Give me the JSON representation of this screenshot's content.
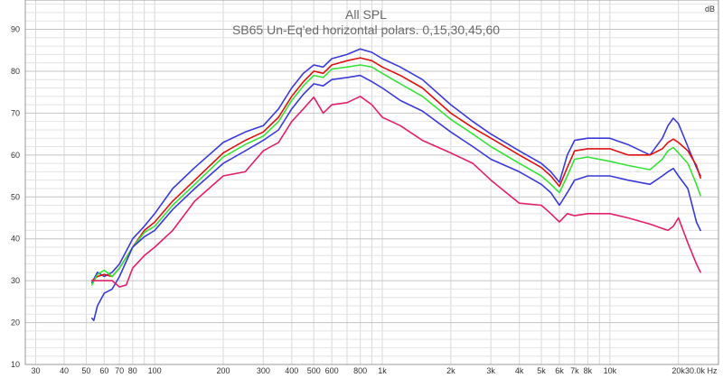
{
  "chart_data": {
    "type": "line",
    "title": "All SPL",
    "subtitle": "SB65 Un-Eq'ed horizontal polars. 0,15,30,45,60",
    "y_unit": "dB",
    "x_unit": "30.0k Hz",
    "x_scale": "log",
    "xlim": [
      27,
      30000
    ],
    "ylim": [
      10,
      97
    ],
    "grid": true,
    "x_ticks": [
      {
        "v": 30,
        "label": "30"
      },
      {
        "v": 40,
        "label": "40"
      },
      {
        "v": 50,
        "label": "50"
      },
      {
        "v": 60,
        "label": "60"
      },
      {
        "v": 70,
        "label": "70"
      },
      {
        "v": 80,
        "label": "80"
      },
      {
        "v": 100,
        "label": "100"
      },
      {
        "v": 200,
        "label": "200"
      },
      {
        "v": 300,
        "label": "300"
      },
      {
        "v": 400,
        "label": "400"
      },
      {
        "v": 500,
        "label": "500"
      },
      {
        "v": 600,
        "label": "600"
      },
      {
        "v": 800,
        "label": "800"
      },
      {
        "v": 1000,
        "label": "1k"
      },
      {
        "v": 2000,
        "label": "2k"
      },
      {
        "v": 3000,
        "label": "3k"
      },
      {
        "v": 4000,
        "label": "4k"
      },
      {
        "v": 5000,
        "label": "5k"
      },
      {
        "v": 6000,
        "label": "6k"
      },
      {
        "v": 7000,
        "label": "7k"
      },
      {
        "v": 8000,
        "label": "8k"
      },
      {
        "v": 10000,
        "label": "10k"
      },
      {
        "v": 20000,
        "label": "20k"
      }
    ],
    "y_ticks": [
      {
        "v": 10,
        "label": "10"
      },
      {
        "v": 20,
        "label": "20"
      },
      {
        "v": 30,
        "label": "30"
      },
      {
        "v": 40,
        "label": "40"
      },
      {
        "v": 50,
        "label": "50"
      },
      {
        "v": 60,
        "label": "60"
      },
      {
        "v": 70,
        "label": "70"
      },
      {
        "v": 80,
        "label": "80"
      },
      {
        "v": 90,
        "label": "90"
      }
    ],
    "series": [
      {
        "color": "#3a3ad6",
        "values": [
          [
            53,
            29.5
          ],
          [
            56,
            32
          ],
          [
            60,
            31
          ],
          [
            65,
            32
          ],
          [
            70,
            34
          ],
          [
            80,
            40
          ],
          [
            90,
            43
          ],
          [
            100,
            46
          ],
          [
            120,
            52
          ],
          [
            150,
            57
          ],
          [
            200,
            63
          ],
          [
            250,
            65.5
          ],
          [
            300,
            67
          ],
          [
            350,
            71
          ],
          [
            400,
            76
          ],
          [
            450,
            79.5
          ],
          [
            500,
            81.5
          ],
          [
            550,
            81
          ],
          [
            600,
            83
          ],
          [
            700,
            84
          ],
          [
            800,
            85.3
          ],
          [
            900,
            84.5
          ],
          [
            1000,
            83
          ],
          [
            1200,
            81
          ],
          [
            1500,
            78
          ],
          [
            2000,
            72
          ],
          [
            2500,
            68
          ],
          [
            3000,
            65
          ],
          [
            4000,
            61
          ],
          [
            5000,
            58
          ],
          [
            5500,
            56
          ],
          [
            6000,
            53.5
          ],
          [
            6500,
            60
          ],
          [
            7000,
            63.5
          ],
          [
            8000,
            64
          ],
          [
            10000,
            64
          ],
          [
            12000,
            62.5
          ],
          [
            15000,
            60
          ],
          [
            17000,
            64
          ],
          [
            18000,
            67
          ],
          [
            19000,
            68.8
          ],
          [
            20000,
            67.5
          ],
          [
            22000,
            62
          ],
          [
            24000,
            57
          ],
          [
            25000,
            55
          ]
        ]
      },
      {
        "color": "#dd1111",
        "values": [
          [
            53,
            30
          ],
          [
            56,
            31
          ],
          [
            60,
            31.5
          ],
          [
            65,
            31
          ],
          [
            70,
            33
          ],
          [
            80,
            38
          ],
          [
            90,
            42
          ],
          [
            100,
            44
          ],
          [
            120,
            49
          ],
          [
            150,
            54
          ],
          [
            200,
            60.5
          ],
          [
            250,
            63.5
          ],
          [
            300,
            65.5
          ],
          [
            350,
            69
          ],
          [
            400,
            74
          ],
          [
            450,
            77.5
          ],
          [
            500,
            80
          ],
          [
            550,
            79.5
          ],
          [
            600,
            81.5
          ],
          [
            700,
            82.5
          ],
          [
            800,
            83.2
          ],
          [
            900,
            82.5
          ],
          [
            1000,
            81
          ],
          [
            1200,
            79
          ],
          [
            1500,
            76
          ],
          [
            2000,
            70
          ],
          [
            2500,
            66.5
          ],
          [
            3000,
            64
          ],
          [
            4000,
            60
          ],
          [
            5000,
            57
          ],
          [
            5500,
            55
          ],
          [
            6000,
            52.5
          ],
          [
            6500,
            57
          ],
          [
            7000,
            61
          ],
          [
            8000,
            61.5
          ],
          [
            10000,
            61.5
          ],
          [
            12000,
            60
          ],
          [
            15000,
            60
          ],
          [
            17000,
            61.5
          ],
          [
            18000,
            63
          ],
          [
            19000,
            63.8
          ],
          [
            20000,
            63
          ],
          [
            22000,
            61
          ],
          [
            24000,
            57.5
          ],
          [
            25000,
            54.5
          ]
        ]
      },
      {
        "color": "#38e038",
        "values": [
          [
            53,
            29
          ],
          [
            56,
            31.5
          ],
          [
            60,
            32.5
          ],
          [
            65,
            31
          ],
          [
            70,
            33
          ],
          [
            80,
            38
          ],
          [
            90,
            41.5
          ],
          [
            100,
            43
          ],
          [
            120,
            48
          ],
          [
            150,
            53
          ],
          [
            200,
            59.5
          ],
          [
            250,
            62.5
          ],
          [
            300,
            64.5
          ],
          [
            350,
            68
          ],
          [
            400,
            73
          ],
          [
            450,
            76.5
          ],
          [
            500,
            79
          ],
          [
            550,
            78.5
          ],
          [
            600,
            80.5
          ],
          [
            700,
            81
          ],
          [
            800,
            81.5
          ],
          [
            900,
            81
          ],
          [
            1000,
            79.5
          ],
          [
            1200,
            77
          ],
          [
            1500,
            74
          ],
          [
            2000,
            68.5
          ],
          [
            2500,
            65
          ],
          [
            3000,
            62
          ],
          [
            4000,
            58
          ],
          [
            5000,
            55
          ],
          [
            5500,
            53
          ],
          [
            6000,
            51
          ],
          [
            6500,
            55
          ],
          [
            7000,
            59
          ],
          [
            8000,
            59.5
          ],
          [
            10000,
            58.5
          ],
          [
            12000,
            57.5
          ],
          [
            15000,
            56.5
          ],
          [
            17000,
            59
          ],
          [
            18000,
            61
          ],
          [
            19000,
            61.8
          ],
          [
            20000,
            60.5
          ],
          [
            22000,
            58
          ],
          [
            24000,
            53
          ],
          [
            25000,
            50.3
          ]
        ]
      },
      {
        "color": "#3a3ad6",
        "values": [
          [
            53,
            21
          ],
          [
            54,
            20.5
          ],
          [
            56,
            24
          ],
          [
            60,
            27
          ],
          [
            65,
            28
          ],
          [
            70,
            31
          ],
          [
            80,
            38
          ],
          [
            90,
            40.5
          ],
          [
            100,
            42
          ],
          [
            120,
            47
          ],
          [
            150,
            52
          ],
          [
            200,
            58
          ],
          [
            250,
            61
          ],
          [
            300,
            63.5
          ],
          [
            350,
            66
          ],
          [
            400,
            71
          ],
          [
            450,
            74.5
          ],
          [
            500,
            77
          ],
          [
            550,
            76.5
          ],
          [
            600,
            78
          ],
          [
            700,
            78.5
          ],
          [
            800,
            79
          ],
          [
            900,
            77.5
          ],
          [
            1000,
            76
          ],
          [
            1200,
            73
          ],
          [
            1500,
            70.5
          ],
          [
            2000,
            65.5
          ],
          [
            2500,
            62
          ],
          [
            3000,
            59
          ],
          [
            4000,
            56
          ],
          [
            5000,
            53
          ],
          [
            5500,
            51
          ],
          [
            6000,
            48
          ],
          [
            6500,
            51
          ],
          [
            7000,
            54
          ],
          [
            8000,
            55
          ],
          [
            10000,
            55
          ],
          [
            12000,
            54
          ],
          [
            15000,
            53
          ],
          [
            17000,
            55
          ],
          [
            18000,
            56
          ],
          [
            19000,
            56.8
          ],
          [
            20000,
            55
          ],
          [
            22000,
            52
          ],
          [
            23000,
            48
          ],
          [
            24000,
            44
          ],
          [
            25000,
            42
          ]
        ]
      },
      {
        "color": "#e0206a",
        "values": [
          [
            53,
            30
          ],
          [
            56,
            30
          ],
          [
            60,
            30
          ],
          [
            65,
            30
          ],
          [
            70,
            28.5
          ],
          [
            75,
            29
          ],
          [
            80,
            33
          ],
          [
            90,
            36
          ],
          [
            100,
            38
          ],
          [
            120,
            42
          ],
          [
            150,
            49
          ],
          [
            200,
            55
          ],
          [
            250,
            56
          ],
          [
            300,
            61
          ],
          [
            350,
            63
          ],
          [
            400,
            68
          ],
          [
            450,
            71
          ],
          [
            500,
            73.8
          ],
          [
            550,
            70
          ],
          [
            600,
            72
          ],
          [
            700,
            72.5
          ],
          [
            800,
            74
          ],
          [
            900,
            72
          ],
          [
            1000,
            69
          ],
          [
            1200,
            67
          ],
          [
            1500,
            63.5
          ],
          [
            2000,
            60.5
          ],
          [
            2500,
            58
          ],
          [
            3000,
            54
          ],
          [
            4000,
            48.5
          ],
          [
            5000,
            48
          ],
          [
            5500,
            46
          ],
          [
            6000,
            44
          ],
          [
            6500,
            46
          ],
          [
            7000,
            45.5
          ],
          [
            8000,
            46
          ],
          [
            10000,
            46
          ],
          [
            12000,
            45
          ],
          [
            15000,
            43.5
          ],
          [
            18000,
            42
          ],
          [
            19000,
            43
          ],
          [
            20000,
            45
          ],
          [
            22000,
            39
          ],
          [
            24000,
            34
          ],
          [
            25000,
            32
          ]
        ]
      }
    ]
  }
}
